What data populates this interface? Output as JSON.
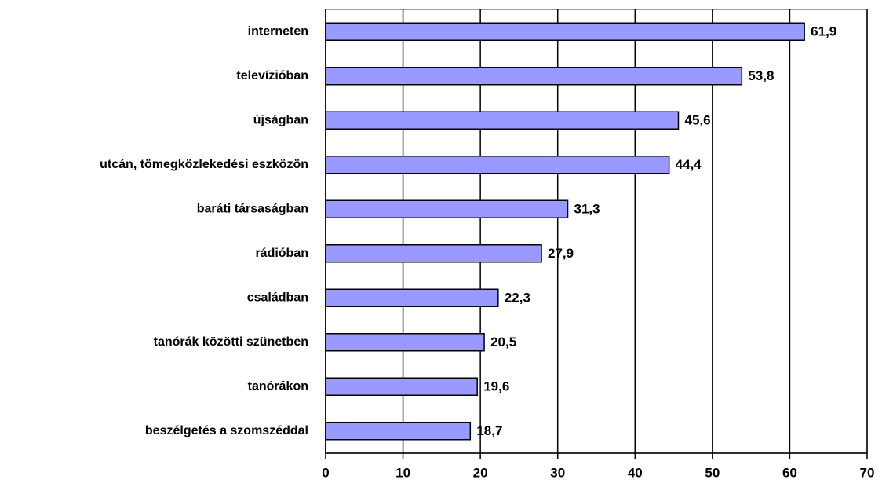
{
  "chart_data": {
    "type": "bar",
    "orientation": "horizontal",
    "categories": [
      "interneten",
      "televízióban",
      "újságban",
      "utcán, tömegközlekedési eszközön",
      "baráti társaságban",
      "rádióban",
      "családban",
      "tanórák közötti szünetben",
      "tanórákon",
      "beszélgetés a szomszéddal"
    ],
    "values": [
      61.9,
      53.8,
      45.6,
      44.4,
      31.3,
      27.9,
      22.3,
      20.5,
      19.6,
      18.7
    ],
    "value_labels": [
      "61,9",
      "53,8",
      "45,6",
      "44,4",
      "31,3",
      "27,9",
      "22,3",
      "20,5",
      "19,6",
      "18,7"
    ],
    "color": "#9999ff",
    "xlim": [
      0,
      70
    ],
    "xticks": [
      0,
      10,
      20,
      30,
      40,
      50,
      60,
      70
    ],
    "grid": true
  }
}
